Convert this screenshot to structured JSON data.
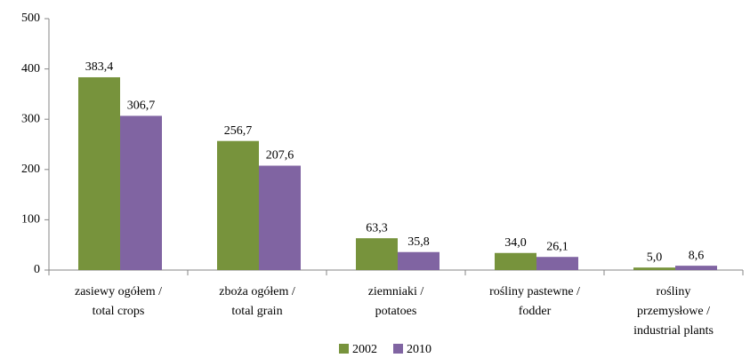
{
  "chart_data": {
    "type": "bar",
    "categories": [
      [
        "zasiewy ogółem /",
        "total crops"
      ],
      [
        "zboża ogółem /",
        "total grain"
      ],
      [
        "ziemniaki /",
        "potatoes"
      ],
      [
        "rośliny pastewne /",
        "fodder"
      ],
      [
        "rośliny",
        "przemysłowe /",
        "industrial plants"
      ]
    ],
    "series": [
      {
        "name": "2002",
        "color": "#77933c",
        "values": [
          383.4,
          256.7,
          63.3,
          34.0,
          5.0
        ],
        "value_labels": [
          "383,4",
          "256,7",
          "63,3",
          "34,0",
          "5,0"
        ]
      },
      {
        "name": "2010",
        "color": "#8064a2",
        "values": [
          306.7,
          207.6,
          35.8,
          26.1,
          8.6
        ],
        "value_labels": [
          "306,7",
          "207,6",
          "35,8",
          "26,1",
          "8,6"
        ]
      }
    ],
    "ylim": [
      0,
      500
    ],
    "yticks": [
      0,
      100,
      200,
      300,
      400,
      500
    ],
    "grid": false,
    "legend": "bottom"
  }
}
